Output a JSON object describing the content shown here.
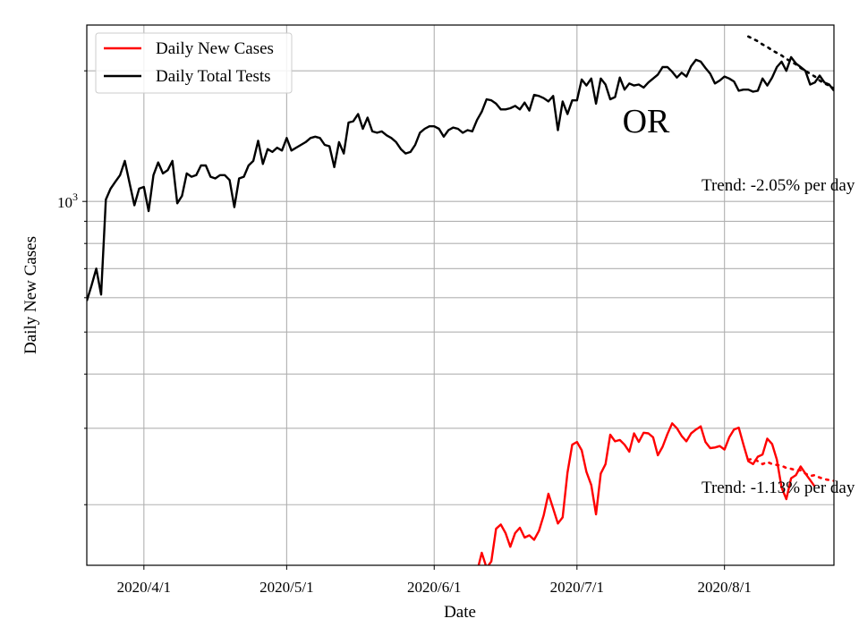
{
  "chart_data": {
    "type": "line",
    "title": "",
    "state_label": "OR",
    "xlabel": "Date",
    "ylabel": "Daily New Cases",
    "y_scale": "log",
    "ylim": [
      145,
      2550
    ],
    "y_tick_label": {
      "value": 1000,
      "base": "10",
      "exponent": "3"
    },
    "x_ticks": [
      {
        "label": "2020/4/1",
        "day": 12
      },
      {
        "label": "2020/5/1",
        "day": 42
      },
      {
        "label": "2020/6/1",
        "day": 73
      },
      {
        "label": "2020/7/1",
        "day": 103
      },
      {
        "label": "2020/8/1",
        "day": 134
      }
    ],
    "x_day_range": [
      0,
      157
    ],
    "legend": {
      "location": "top-left",
      "entries": [
        "Daily New Cases",
        "Daily Total Tests"
      ]
    },
    "colors": {
      "cases": "#ff0000",
      "tests": "#000000",
      "grid": "#b0b0b0"
    },
    "series": [
      {
        "name": "Daily Total Tests",
        "color": "#000000",
        "start_day": 0,
        "values": [
          590,
          640,
          700,
          610,
          1010,
          1070,
          1110,
          1150,
          1240,
          1100,
          980,
          1070,
          1080,
          950,
          1150,
          1230,
          1160,
          1180,
          1240,
          990,
          1030,
          1160,
          1140,
          1150,
          1210,
          1210,
          1140,
          1130,
          1150,
          1150,
          1120,
          970,
          1130,
          1140,
          1210,
          1240,
          1380,
          1220,
          1320,
          1300,
          1330,
          1310,
          1400,
          1310,
          1330,
          1350,
          1370,
          1400,
          1410,
          1400,
          1350,
          1340,
          1200,
          1370,
          1290,
          1520,
          1530,
          1590,
          1470,
          1560,
          1450,
          1440,
          1450,
          1420,
          1400,
          1370,
          1320,
          1290,
          1300,
          1350,
          1440,
          1470,
          1490,
          1490,
          1470,
          1410,
          1460,
          1480,
          1470,
          1440,
          1460,
          1450,
          1540,
          1610,
          1720,
          1710,
          1680,
          1630,
          1630,
          1640,
          1660,
          1630,
          1690,
          1620,
          1760,
          1750,
          1730,
          1700,
          1750,
          1460,
          1700,
          1590,
          1710,
          1710,
          1910,
          1850,
          1920,
          1680,
          1920,
          1860,
          1720,
          1740,
          1930,
          1810,
          1870,
          1850,
          1860,
          1830,
          1880,
          1920,
          1960,
          2040,
          2040,
          1990,
          1930,
          1980,
          1940,
          2050,
          2120,
          2100,
          2030,
          1970,
          1870,
          1900,
          1940,
          1920,
          1890,
          1800,
          1810,
          1810,
          1790,
          1800,
          1920,
          1850,
          1930,
          2040,
          2100,
          2000,
          2150,
          2080,
          2040,
          2000,
          1860,
          1880,
          1950,
          1880,
          1860,
          1800
        ]
      },
      {
        "name": "Daily New Cases",
        "color": "#ff0000",
        "start_day": 82,
        "values": [
          140,
          155,
          143,
          148,
          176,
          180,
          172,
          160,
          172,
          177,
          168,
          170,
          166,
          174,
          189,
          212,
          196,
          181,
          187,
          237,
          275,
          279,
          267,
          238,
          222,
          190,
          236,
          248,
          290,
          280,
          282,
          275,
          265,
          292,
          279,
          293,
          292,
          286,
          260,
          272,
          291,
          308,
          300,
          288,
          280,
          292,
          298,
          303,
          279,
          270,
          271,
          273,
          268,
          286,
          298,
          301,
          275,
          252,
          248,
          258,
          261,
          284,
          276,
          254,
          219,
          206,
          230,
          234,
          245,
          236,
          228,
          220
        ]
      }
    ],
    "trend_lines": [
      {
        "series": "Daily Total Tests",
        "start_day": 139,
        "values": [
          2400,
          2370,
          2340,
          2300,
          2270,
          2230,
          2200,
          2170,
          2130,
          2100,
          2070,
          2030,
          2000,
          1970,
          1940,
          1900,
          1870,
          1850,
          1820
        ]
      },
      {
        "series": "Daily New Cases",
        "start_day": 139,
        "values": [
          254,
          255,
          252,
          248,
          251,
          248,
          247,
          246,
          243,
          242,
          240,
          240,
          236,
          233,
          234,
          231,
          229,
          228,
          227
        ]
      }
    ],
    "annotations": [
      {
        "text": "Trend: -2.05% per day"
      },
      {
        "text": "Trend: -1.13% per day"
      }
    ]
  }
}
